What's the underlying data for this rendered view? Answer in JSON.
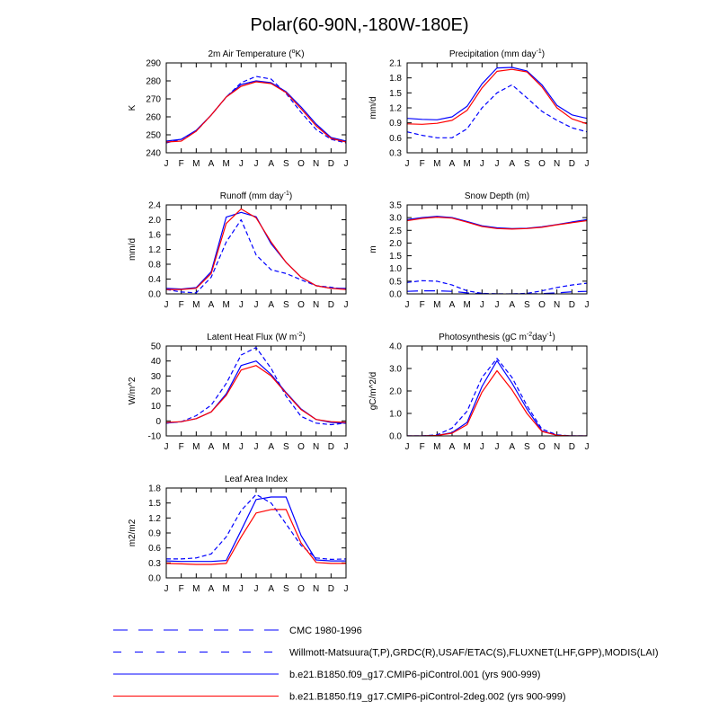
{
  "title": "Polar(60-90N,-180W-180E)",
  "colors": {
    "blue": "#0000ff",
    "red": "#ff0000",
    "axis": "#000000"
  },
  "legend": [
    {
      "label": "CMC 1980-1996",
      "color": "#0000ff",
      "dash": "long"
    },
    {
      "label": "Willmott-Matsuura(T,P),GRDC(R),USAF/ETAC(S),FLUXNET(LHF,GPP),MODIS(LAI)",
      "color": "#0000ff",
      "dash": "short"
    },
    {
      "label": "b.e21.B1850.f09_g17.CMIP6-piControl.001 (yrs 900-999)",
      "color": "#0000ff",
      "dash": "solid"
    },
    {
      "label": "b.e21.B1850.f19_g17.CMIP6-piControl-2deg.002 (yrs 900-999)",
      "color": "#ff0000",
      "dash": "solid"
    }
  ],
  "chart_data": [
    {
      "type": "line",
      "title": "2m Air Temperature (°K)",
      "title_parts": [
        "2m Air Temperature (",
        "o",
        "K)"
      ],
      "xlabel": "",
      "ylabel": "K",
      "categories": [
        "J",
        "F",
        "M",
        "A",
        "M",
        "J",
        "J",
        "A",
        "S",
        "O",
        "N",
        "D",
        "J"
      ],
      "ylim": [
        240,
        290
      ],
      "yticks": [
        240,
        250,
        260,
        270,
        280,
        290
      ],
      "ytick_labels": [
        "240",
        "250",
        "260",
        "270",
        "280",
        "290"
      ],
      "series": [
        {
          "name": "Willmott-Matsuura",
          "color": "#0000ff",
          "dash": "short",
          "values": [
            245.5,
            247.5,
            252.0,
            261.0,
            271.0,
            279.0,
            282.5,
            281.0,
            273.0,
            262.5,
            253.0,
            247.5,
            245.5
          ]
        },
        {
          "name": "b.e21.B1850.f09_g17",
          "color": "#0000ff",
          "dash": "solid",
          "values": [
            246.5,
            247.5,
            252.5,
            261.0,
            271.0,
            278.0,
            280.0,
            279.0,
            274.0,
            265.5,
            256.0,
            248.5,
            246.5
          ]
        },
        {
          "name": "b.e21.B1850.f19_g17",
          "color": "#ff0000",
          "dash": "solid",
          "values": [
            246.0,
            246.5,
            252.0,
            261.0,
            271.0,
            277.0,
            279.5,
            278.5,
            273.5,
            264.5,
            255.0,
            248.0,
            246.0
          ]
        }
      ]
    },
    {
      "type": "line",
      "title": "Precipitation (mm day⁻¹)",
      "title_parts": [
        "Precipitation (mm day",
        "-1",
        ")"
      ],
      "xlabel": "",
      "ylabel": "mm/d",
      "categories": [
        "J",
        "F",
        "M",
        "A",
        "M",
        "J",
        "J",
        "A",
        "S",
        "O",
        "N",
        "D",
        "J"
      ],
      "ylim": [
        0.3,
        2.1
      ],
      "yticks": [
        0.3,
        0.6,
        0.9,
        1.2,
        1.5,
        1.8,
        2.1
      ],
      "ytick_labels": [
        "0.3",
        "0.6",
        "0.9",
        "1.2",
        "1.5",
        "1.8",
        "2.1"
      ],
      "series": [
        {
          "name": "Willmott-Matsuura",
          "color": "#0000ff",
          "dash": "short",
          "values": [
            0.72,
            0.65,
            0.6,
            0.6,
            0.78,
            1.2,
            1.5,
            1.66,
            1.4,
            1.13,
            0.95,
            0.8,
            0.72
          ]
        },
        {
          "name": "b.e21.B1850.f09_g17",
          "color": "#0000ff",
          "dash": "solid",
          "values": [
            0.99,
            0.97,
            0.96,
            1.02,
            1.23,
            1.68,
            2.0,
            2.01,
            1.94,
            1.66,
            1.25,
            1.06,
            0.99
          ]
        },
        {
          "name": "b.e21.B1850.f19_g17",
          "color": "#ff0000",
          "dash": "solid",
          "values": [
            0.88,
            0.87,
            0.89,
            0.95,
            1.15,
            1.6,
            1.93,
            1.97,
            1.92,
            1.62,
            1.2,
            0.98,
            0.88
          ]
        }
      ]
    },
    {
      "type": "line",
      "title": "Runoff (mm day⁻¹)",
      "title_parts": [
        "Runoff (mm day",
        "-1",
        ")"
      ],
      "xlabel": "",
      "ylabel": "mm/d",
      "categories": [
        "J",
        "F",
        "M",
        "A",
        "M",
        "J",
        "J",
        "A",
        "S",
        "O",
        "N",
        "D",
        "J"
      ],
      "ylim": [
        0,
        2.4
      ],
      "yticks": [
        0,
        0.4,
        0.8,
        1.2,
        1.6,
        2.0,
        2.4
      ],
      "ytick_labels": [
        "0.0",
        "0.4",
        "0.8",
        "1.2",
        "1.6",
        "2.0",
        "2.4"
      ],
      "series": [
        {
          "name": "Willmott-Matsuura",
          "color": "#0000ff",
          "dash": "short",
          "values": [
            0.12,
            0.05,
            0.03,
            0.45,
            1.4,
            2.0,
            1.05,
            0.65,
            0.55,
            0.38,
            0.22,
            0.18,
            0.12
          ]
        },
        {
          "name": "b.e21.B1850.f09_g17",
          "color": "#0000ff",
          "dash": "solid",
          "values": [
            0.15,
            0.13,
            0.17,
            0.6,
            2.07,
            2.2,
            2.08,
            1.35,
            0.85,
            0.45,
            0.22,
            0.15,
            0.15
          ]
        },
        {
          "name": "b.e21.B1850.f19_g17",
          "color": "#ff0000",
          "dash": "solid",
          "values": [
            0.12,
            0.12,
            0.15,
            0.55,
            1.9,
            2.29,
            2.05,
            1.4,
            0.85,
            0.45,
            0.22,
            0.15,
            0.12
          ]
        }
      ]
    },
    {
      "type": "line",
      "title": "Snow Depth (m)",
      "title_parts": [
        "Snow Depth (m)"
      ],
      "xlabel": "",
      "ylabel": "m",
      "categories": [
        "J",
        "F",
        "M",
        "A",
        "M",
        "J",
        "J",
        "A",
        "S",
        "O",
        "N",
        "D",
        "J"
      ],
      "ylim": [
        0,
        3.5
      ],
      "yticks": [
        0,
        0.5,
        1.0,
        1.5,
        2.0,
        2.5,
        3.0,
        3.5
      ],
      "ytick_labels": [
        "0.0",
        "0.5",
        "1.0",
        "1.5",
        "2.0",
        "2.5",
        "3.0",
        "3.5"
      ],
      "series": [
        {
          "name": "CMC 1980-1996",
          "color": "#0000ff",
          "dash": "long",
          "values": [
            0.1,
            0.12,
            0.12,
            0.1,
            0.04,
            0.01,
            0.0,
            0.0,
            0.0,
            0.01,
            0.04,
            0.08,
            0.1
          ]
        },
        {
          "name": "USAF/ETAC",
          "color": "#0000ff",
          "dash": "short",
          "values": [
            0.45,
            0.52,
            0.5,
            0.35,
            0.12,
            0.02,
            0.0,
            0.0,
            0.02,
            0.12,
            0.25,
            0.35,
            0.42
          ]
        },
        {
          "name": "b.e21.B1850.f09_g17",
          "color": "#0000ff",
          "dash": "solid",
          "values": [
            2.92,
            3.0,
            3.05,
            3.0,
            2.85,
            2.68,
            2.6,
            2.57,
            2.58,
            2.64,
            2.73,
            2.83,
            2.92
          ]
        },
        {
          "name": "b.e21.B1850.f19_g17",
          "color": "#ff0000",
          "dash": "solid",
          "values": [
            2.88,
            2.97,
            3.02,
            2.98,
            2.82,
            2.65,
            2.57,
            2.55,
            2.57,
            2.62,
            2.72,
            2.8,
            2.88
          ]
        }
      ]
    },
    {
      "type": "line",
      "title": "Latent Heat Flux (W m⁻²)",
      "title_parts": [
        "Latent Heat Flux (W m",
        "-2",
        ")"
      ],
      "xlabel": "",
      "ylabel": "W/m^2",
      "categories": [
        "J",
        "F",
        "M",
        "A",
        "M",
        "J",
        "J",
        "A",
        "S",
        "O",
        "N",
        "D",
        "J"
      ],
      "ylim": [
        -10,
        50
      ],
      "yticks": [
        -10,
        0,
        10,
        20,
        30,
        40,
        50
      ],
      "ytick_labels": [
        "-10",
        "0",
        "10",
        "20",
        "30",
        "40",
        "50"
      ],
      "series": [
        {
          "name": "FLUXNET",
          "color": "#0000ff",
          "dash": "short",
          "values": [
            -1.5,
            -0.5,
            3.5,
            10.5,
            25.0,
            44.0,
            49.0,
            35.0,
            16.5,
            3.0,
            -1.5,
            -2.5,
            -1.5
          ]
        },
        {
          "name": "b.e21.B1850.f09_g17",
          "color": "#0000ff",
          "dash": "solid",
          "values": [
            -1.5,
            -0.5,
            1.5,
            6.0,
            18.0,
            37.0,
            40.0,
            31.0,
            19.0,
            8.0,
            1.0,
            -1.0,
            -1.5
          ]
        },
        {
          "name": "b.e21.B1850.f19_g17",
          "color": "#ff0000",
          "dash": "solid",
          "values": [
            -1.0,
            -0.5,
            1.5,
            6.0,
            17.0,
            34.0,
            37.0,
            30.0,
            18.5,
            7.5,
            1.0,
            -0.5,
            -1.0
          ]
        }
      ]
    },
    {
      "type": "line",
      "title": "Photosynthesis (gC m⁻²day⁻¹)",
      "title_parts": [
        "Photosynthesis (gC m",
        "-2",
        "day",
        "-1",
        ")"
      ],
      "xlabel": "",
      "ylabel": "gC/m^2/d",
      "categories": [
        "J",
        "F",
        "M",
        "A",
        "M",
        "J",
        "J",
        "A",
        "S",
        "O",
        "N",
        "D",
        "J"
      ],
      "ylim": [
        0,
        4.0
      ],
      "yticks": [
        0,
        1.0,
        2.0,
        3.0,
        4.0
      ],
      "ytick_labels": [
        "0.0",
        "1.0",
        "2.0",
        "3.0",
        "4.0"
      ],
      "series": [
        {
          "name": "FLUXNET",
          "color": "#0000ff",
          "dash": "short",
          "values": [
            0.0,
            0.0,
            0.05,
            0.35,
            1.1,
            2.6,
            3.45,
            2.6,
            1.35,
            0.3,
            0.05,
            0.0,
            0.0
          ]
        },
        {
          "name": "b.e21.B1850.f09_g17",
          "color": "#0000ff",
          "dash": "solid",
          "values": [
            0.0,
            0.0,
            0.02,
            0.15,
            0.6,
            2.2,
            3.35,
            2.35,
            1.2,
            0.22,
            0.03,
            0.0,
            0.0
          ]
        },
        {
          "name": "b.e21.B1850.f19_g17",
          "color": "#ff0000",
          "dash": "solid",
          "values": [
            0.0,
            0.0,
            0.02,
            0.12,
            0.5,
            1.95,
            2.9,
            2.05,
            1.0,
            0.2,
            0.03,
            0.0,
            0.0
          ]
        }
      ]
    },
    {
      "type": "line",
      "title": "Leaf Area Index",
      "title_parts": [
        "Leaf Area Index"
      ],
      "xlabel": "",
      "ylabel": "m2/m2",
      "categories": [
        "J",
        "F",
        "M",
        "A",
        "M",
        "J",
        "J",
        "A",
        "S",
        "O",
        "N",
        "D",
        "J"
      ],
      "ylim": [
        0,
        1.8
      ],
      "yticks": [
        0,
        0.3,
        0.6,
        0.9,
        1.2,
        1.5,
        1.8
      ],
      "ytick_labels": [
        "0.0",
        "0.3",
        "0.6",
        "0.9",
        "1.2",
        "1.5",
        "1.8"
      ],
      "series": [
        {
          "name": "MODIS",
          "color": "#0000ff",
          "dash": "short",
          "values": [
            0.38,
            0.38,
            0.4,
            0.48,
            0.82,
            1.35,
            1.67,
            1.5,
            1.08,
            0.65,
            0.4,
            0.37,
            0.38
          ]
        },
        {
          "name": "b.e21.B1850.f09_g17",
          "color": "#0000ff",
          "dash": "solid",
          "values": [
            0.34,
            0.33,
            0.33,
            0.33,
            0.35,
            0.95,
            1.57,
            1.62,
            1.62,
            0.85,
            0.36,
            0.34,
            0.34
          ]
        },
        {
          "name": "b.e21.B1850.f19_g17",
          "color": "#ff0000",
          "dash": "solid",
          "values": [
            0.29,
            0.28,
            0.27,
            0.27,
            0.29,
            0.82,
            1.3,
            1.37,
            1.37,
            0.7,
            0.31,
            0.29,
            0.29
          ]
        }
      ]
    }
  ]
}
